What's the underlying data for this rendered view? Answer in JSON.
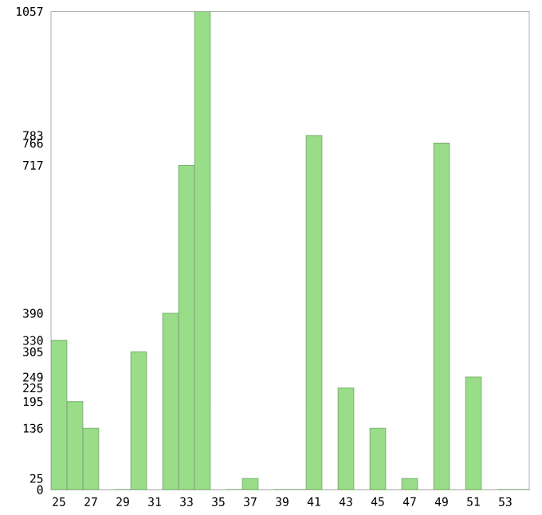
{
  "chart_data": {
    "type": "bar",
    "color": "#99dd88",
    "categories": [
      "25",
      null,
      "27",
      null,
      "29",
      null,
      "31",
      null,
      "33",
      null,
      "35",
      null,
      "37",
      null,
      "39",
      null,
      "41",
      null,
      "43",
      null,
      "45",
      null,
      "47",
      null,
      "49",
      null,
      "51",
      null,
      "53",
      null
    ],
    "values": [
      330,
      195,
      136,
      null,
      0,
      305,
      null,
      390,
      717,
      1057,
      null,
      0,
      25,
      null,
      0,
      0,
      783,
      null,
      225,
      null,
      136,
      null,
      25,
      null,
      766,
      null,
      249,
      null,
      0,
      0
    ],
    "ylim": [
      0,
      1057
    ],
    "yticks": [
      0,
      25,
      136,
      195,
      225,
      249,
      305,
      330,
      390,
      717,
      766,
      783,
      1057
    ]
  }
}
